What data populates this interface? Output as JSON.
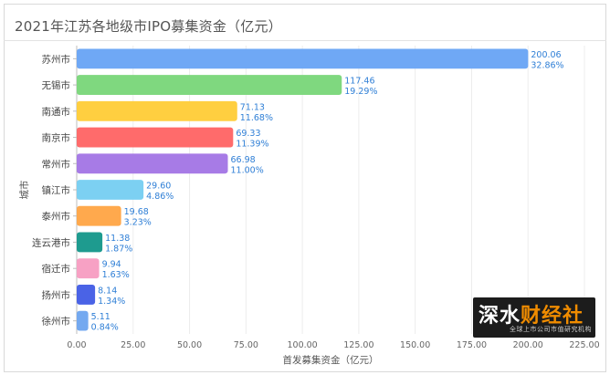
{
  "title": "2021年江苏各地级市IPO募集资金（亿元）",
  "watermark": {
    "brand_a": "深水",
    "brand_b": "财经社",
    "tagline": "全球上市公司市值研究机构"
  },
  "chart_data": {
    "type": "bar",
    "orientation": "horizontal",
    "title": "2021年江苏各地级市IPO募集资金（亿元）",
    "xlabel": "首发募集资金（亿元）",
    "ylabel": "城市",
    "xlim": [
      0,
      225
    ],
    "xticks": [
      "0.00",
      "25.00",
      "50.00",
      "75.00",
      "100.00",
      "125.00",
      "150.00",
      "175.00",
      "200.00",
      "225.00"
    ],
    "grid": true,
    "categories": [
      "苏州市",
      "无锡市",
      "南通市",
      "南京市",
      "常州市",
      "镇江市",
      "泰州市",
      "连云港市",
      "宿迁市",
      "扬州市",
      "徐州市"
    ],
    "values": [
      200.06,
      117.46,
      71.13,
      69.33,
      66.98,
      29.6,
      19.68,
      11.38,
      9.94,
      8.14,
      5.11
    ],
    "value_labels": [
      "200.06",
      "117.46",
      "71.13",
      "69.33",
      "66.98",
      "29.60",
      "19.68",
      "11.38",
      "9.94",
      "8.14",
      "5.11"
    ],
    "percent_labels": [
      "32.86%",
      "19.29%",
      "11.68%",
      "11.39%",
      "11.00%",
      "4.86%",
      "3.23%",
      "1.87%",
      "1.63%",
      "1.34%",
      "0.84%"
    ],
    "colors": [
      "#6fa8f5",
      "#7fd87f",
      "#ffcf40",
      "#ff6b6b",
      "#a77be6",
      "#7cd0f2",
      "#ffa94d",
      "#1e9b8f",
      "#f7a1c4",
      "#4a63e6",
      "#74a9f0"
    ],
    "label_color": "#2f7fd6"
  }
}
